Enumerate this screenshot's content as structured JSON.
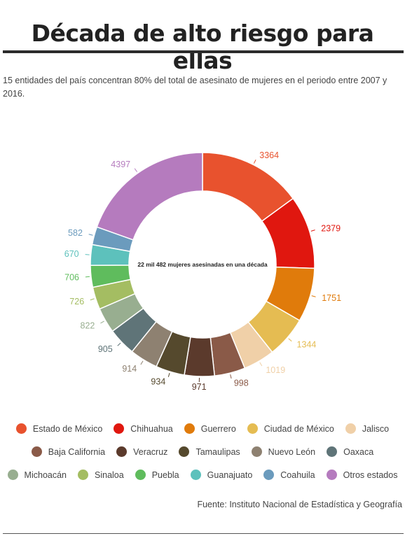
{
  "header": {
    "title": "Década de alto riesgo para ellas",
    "subtitle": "15 entidades del país concentran 80% del total de asesinato de mujeres en el periodo entre 2007 y 2016."
  },
  "chart_data": {
    "type": "pie",
    "variant": "donut",
    "center_label": "22 mil 482 mujeres asesinadas en una década",
    "legend_position": "bottom",
    "categories": [
      "Estado de México",
      "Chihuahua",
      "Guerrero",
      "Ciudad de México",
      "Jalisco",
      "Baja California",
      "Veracruz",
      "Tamaulipas",
      "Nuevo León",
      "Oaxaca",
      "Michoacán",
      "Sinaloa",
      "Puebla",
      "Guanajuato",
      "Coahuila",
      "Otros estados"
    ],
    "values": [
      3364,
      2379,
      1751,
      1344,
      1019,
      998,
      971,
      934,
      914,
      905,
      822,
      726,
      706,
      670,
      582,
      4397
    ],
    "colors": [
      "#e8522e",
      "#e0170f",
      "#e07b0b",
      "#e5bc52",
      "#f0d0a8",
      "#8a5a48",
      "#5b3a2c",
      "#55492d",
      "#8e8171",
      "#5f7478",
      "#98ae90",
      "#a4bd62",
      "#5fbc5d",
      "#5dc1bc",
      "#6b9bbd",
      "#b57bbe"
    ]
  },
  "source": "Fuente: Instituto Nacional de Estadística y Geografía"
}
